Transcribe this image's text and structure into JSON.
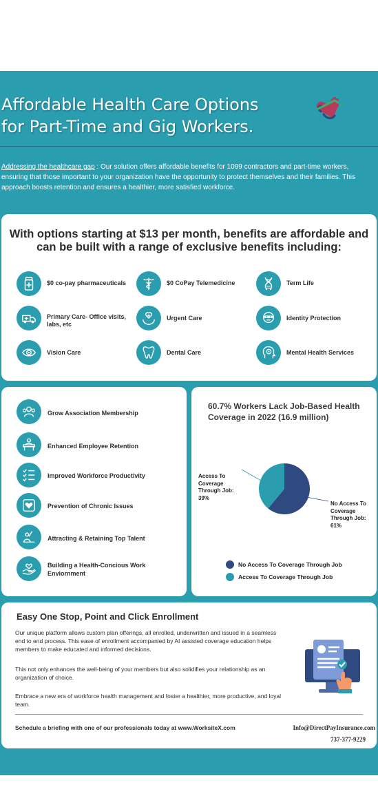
{
  "colors": {
    "teal": "#2a9daf",
    "navy": "#2f4a80",
    "text": "#2e2e2e"
  },
  "hero": {
    "title_line1": "Affordable Health Care Options",
    "title_line2": "for Part-Time and Gig Workers.",
    "logo_icon": "heart-stethoscope-logo",
    "intro_lead": "Addressing the healthcare gap",
    "intro_text": " : Our solution offers affordable benefits for 1099 contractors and part-time workers, ensuring that those important to your organization have the opportunity to protect themselves and their families. This approach boosts retention and ensures a healthier, more satisfied workforce."
  },
  "benefits": {
    "heading": "With options starting at $13 per month, benefits are affordable and can be built with a range of exclusive benefits including:",
    "items": [
      {
        "label": "$0 co-pay pharmaceuticals",
        "icon": "pill-bottle-icon"
      },
      {
        "label": "$0 CoPay Telemedicine",
        "icon": "caduceus-icon"
      },
      {
        "label": "Term Life",
        "icon": "dna-icon"
      },
      {
        "label": "Primary Care- Office visits, labs, etc",
        "icon": "ambulance-icon"
      },
      {
        "label": "Urgent Care",
        "icon": "hands-cross-icon"
      },
      {
        "label": "Identity Protection",
        "icon": "masked-person-icon"
      },
      {
        "label": "Vision Care",
        "icon": "eye-icon"
      },
      {
        "label": "Dental Care",
        "icon": "tooth-icon"
      },
      {
        "label": "Mental Health Services",
        "icon": "brain-head-icon"
      }
    ]
  },
  "impact": {
    "items": [
      {
        "label": "Grow Association Membership",
        "icon": "people-group-icon"
      },
      {
        "label": "Enhanced Employee Retention",
        "icon": "desk-person-icon"
      },
      {
        "label": "Improved Workforce Productivity",
        "icon": "checklist-icon"
      },
      {
        "label": "Prevention of Chronic Issues",
        "icon": "heart-card-icon"
      },
      {
        "label": "Attracting & Retaining Top Talent",
        "icon": "raised-hand-person-icon"
      },
      {
        "label": "Building a Health-Concious Work Enviornment",
        "icon": "heart-in-hand-icon"
      }
    ]
  },
  "chart_data": {
    "type": "pie",
    "title": "60.7% Workers Lack Job-Based Health Coverage in 2022 (16.9 million)",
    "slices": [
      {
        "name": "No Access To Coverage Through Job",
        "label_lines": [
          "No Access To",
          "Coverage",
          "Through Job:",
          "61%"
        ],
        "value": 61,
        "color": "#2f4a80"
      },
      {
        "name": "Access To Coverage Through Job",
        "label_lines": [
          "Access To",
          "Coverage",
          "Through Job:",
          "39%"
        ],
        "value": 39,
        "color": "#2a9daf"
      }
    ],
    "legend_position": "bottom"
  },
  "enroll": {
    "title": "Easy One Stop, Point and Click Enrollment",
    "p1": "Our unique platform allows custom plan offerings, all enrolled, underwritten and issued in a seamless end to end process. This ease of enrollment accompanied by AI assisted coverage education helps members to make educated and informed decisions.",
    "p2": "This not only enhances the well-being of your members but also solidifies your relationship as an organization of choice.",
    "p3": "Embrace a new era of workforce health management and foster a healthier, more productive, and loyal team.",
    "cta": "Schedule a briefing with one of our professionals today at  www.WorksiteX.com",
    "email": "Info@DirectPayInsurance.com",
    "phone": "737-377-9229",
    "illustration_icon": "online-form-icon"
  }
}
